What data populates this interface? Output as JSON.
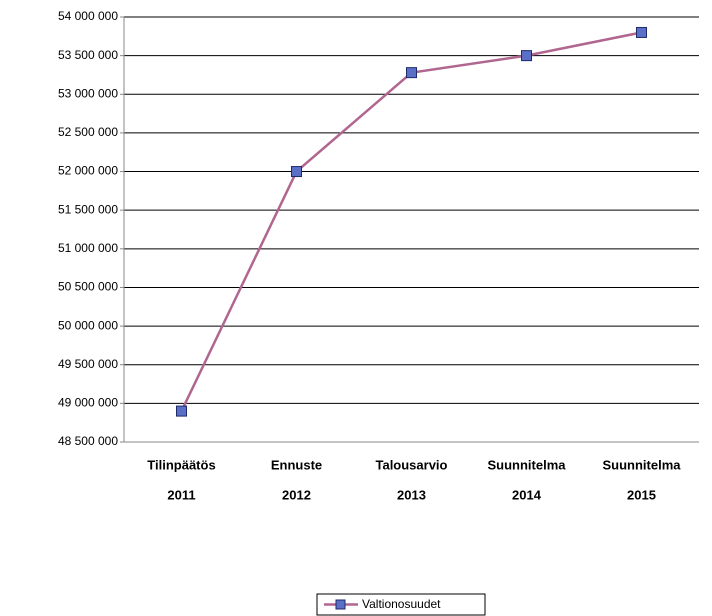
{
  "chart_data": {
    "type": "line",
    "categories": [
      [
        "Tilinpäätös",
        "2011"
      ],
      [
        "Ennuste",
        "2012"
      ],
      [
        "Talousarvio",
        "2013"
      ],
      [
        "Suunnitelma",
        "2014"
      ],
      [
        "Suunnitelma",
        "2015"
      ]
    ],
    "series": [
      {
        "name": "Valtionosuudet",
        "color": "#b0668f",
        "marker_color": "#5a6fc6",
        "values": [
          48900000,
          52000000,
          53280000,
          53500000,
          53800000
        ]
      }
    ],
    "ylim": [
      48500000,
      54000000
    ],
    "yticks": [
      {
        "value": 48500000,
        "label": "48 500 000"
      },
      {
        "value": 49000000,
        "label": "49 000 000"
      },
      {
        "value": 49500000,
        "label": "49 500 000"
      },
      {
        "value": 50000000,
        "label": "50 000 000"
      },
      {
        "value": 50500000,
        "label": "50 500 000"
      },
      {
        "value": 51000000,
        "label": "51 000 000"
      },
      {
        "value": 51500000,
        "label": "51 500 000"
      },
      {
        "value": 52000000,
        "label": "52 000 000"
      },
      {
        "value": 52500000,
        "label": "52 500 000"
      },
      {
        "value": 53000000,
        "label": "53 000 000"
      },
      {
        "value": 53500000,
        "label": "53 500 000"
      },
      {
        "value": 54000000,
        "label": "54 000 000"
      }
    ],
    "grid": true,
    "legend": "bottom"
  }
}
